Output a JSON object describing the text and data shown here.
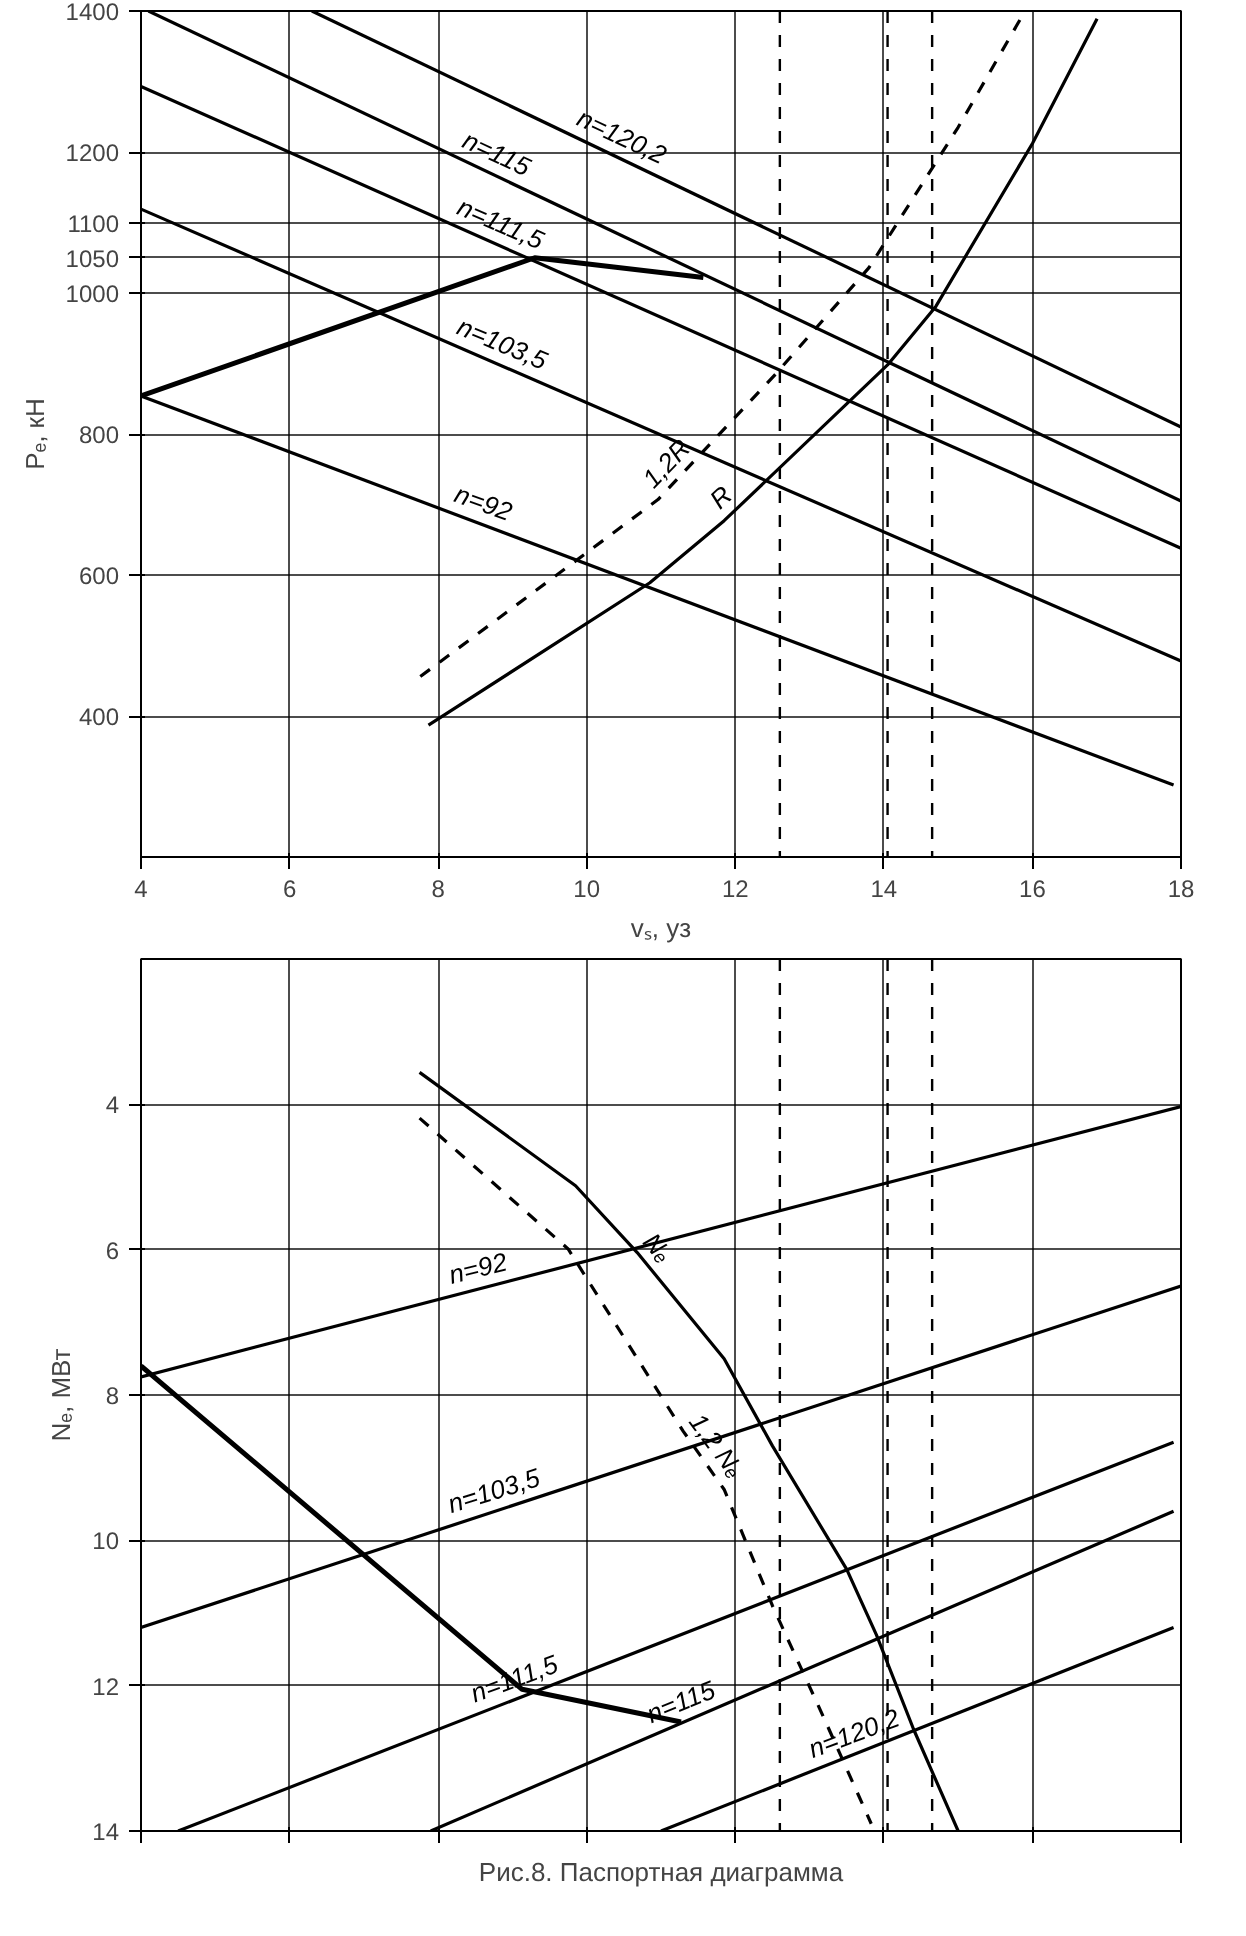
{
  "chart_data": [
    {
      "type": "line",
      "ylabel": "Pₑ, кН",
      "xlabel": "vₛ, уз",
      "xlim": [
        4,
        18
      ],
      "ylim": [
        200,
        1400
      ],
      "xticks": [
        4,
        6,
        8,
        10,
        12,
        14,
        16,
        18
      ],
      "yticks": [
        400,
        600,
        800,
        1000,
        {
          "value": 1050,
          "label": "1050"
        },
        {
          "value": 1100,
          "label": "1100"
        },
        1200,
        1400
      ],
      "grid": true,
      "tick_labels": "xy",
      "series": [
        {
          "name": "n=120,2",
          "color": "#000000",
          "x": [
            6.3,
            18
          ],
          "values": [
            1400,
            810
          ]
        },
        {
          "name": "n=115",
          "color": "#000000",
          "x": [
            4.1,
            18
          ],
          "values": [
            1400,
            705
          ]
        },
        {
          "name": "n=111,5",
          "color": "#000000",
          "x": [
            4,
            18
          ],
          "values": [
            1293,
            638
          ]
        },
        {
          "name": "n=103,5",
          "color": "#000000",
          "x": [
            4,
            18
          ],
          "values": [
            1119,
            478
          ]
        },
        {
          "name": "n=92",
          "color": "#000000",
          "x": [
            4,
            17.9
          ],
          "values": [
            854,
            302
          ]
        },
        {
          "name": "R",
          "color": "#000000",
          "x": [
            7.87,
            10.85,
            11.85,
            14.05,
            14.7,
            16.0,
            16.87
          ],
          "values": [
            387,
            589,
            677,
            898,
            981,
            1212,
            1389
          ]
        },
        {
          "name": "1,2R",
          "color": "#000000",
          "line_style": "dashed",
          "x": [
            7.76,
            10.96,
            12.56,
            13.8,
            15.0,
            15.9
          ],
          "values": [
            456,
            707,
            887,
            1036,
            1235,
            1400
          ]
        },
        {
          "color": "#000000",
          "x": [
            4,
            9.3,
            11.57
          ],
          "values": [
            854,
            1050,
            1022
          ]
        }
      ],
      "ref_lines": [
        {
          "axis": "x",
          "value": 12.6,
          "line_style": "dashed"
        },
        {
          "axis": "x",
          "value": 14.05,
          "line_style": "dashed"
        },
        {
          "axis": "x",
          "value": 14.65,
          "line_style": "dashed"
        }
      ]
    },
    {
      "type": "line",
      "ylabel": "Nₑ, МВт",
      "xlim": [
        4,
        18
      ],
      "ylim": [
        14,
        2
      ],
      "xticks": [
        4,
        6,
        8,
        10,
        12,
        14,
        16,
        18
      ],
      "yticks": [
        4,
        6,
        8,
        10,
        12,
        14
      ],
      "grid": true,
      "tick_labels": "y",
      "annotations": [
        "Рис.8. Паспортная диаграмма"
      ],
      "series": [
        {
          "name": "n=92",
          "color": "#000000",
          "x": [
            4,
            18
          ],
          "values": [
            7.75,
            4.03
          ]
        },
        {
          "name": "n=103,5",
          "color": "#000000",
          "x": [
            4,
            18
          ],
          "values": [
            11.2,
            6.5
          ]
        },
        {
          "name": "n=111,5",
          "color": "#000000",
          "x": [
            4.5,
            17.9
          ],
          "values": [
            14.0,
            8.65
          ]
        },
        {
          "name": "n=115",
          "color": "#000000",
          "x": [
            7.9,
            17.9
          ],
          "values": [
            14.0,
            9.6
          ]
        },
        {
          "name": "n=120,2",
          "color": "#000000",
          "x": [
            11.0,
            17.9
          ],
          "values": [
            14.0,
            11.2
          ]
        },
        {
          "name": "Nₑ",
          "color": "#000000",
          "x": [
            7.75,
            9.85,
            10.68,
            11.85,
            12.5,
            13.5,
            13.9,
            14.4,
            15.0
          ],
          "values": [
            3.56,
            5.12,
            6.04,
            7.5,
            8.7,
            10.4,
            11.3,
            12.6,
            14.0
          ]
        },
        {
          "name": "1,2 Nₑ",
          "color": "#000000",
          "line_style": "dashed",
          "x": [
            7.75,
            9.75,
            11.3,
            11.85,
            12.5,
            13.2,
            13.83
          ],
          "values": [
            4.19,
            5.99,
            8.5,
            9.3,
            10.9,
            12.46,
            13.9
          ]
        },
        {
          "color": "#000000",
          "x": [
            4,
            9.13,
            11.27
          ],
          "values": [
            7.6,
            12.05,
            12.5
          ]
        }
      ],
      "ref_lines": [
        {
          "axis": "x",
          "value": 12.6,
          "line_style": "dashed"
        },
        {
          "axis": "x",
          "value": 14.05,
          "line_style": "dashed"
        },
        {
          "axis": "x",
          "value": 14.65,
          "line_style": "dashed"
        }
      ]
    }
  ]
}
